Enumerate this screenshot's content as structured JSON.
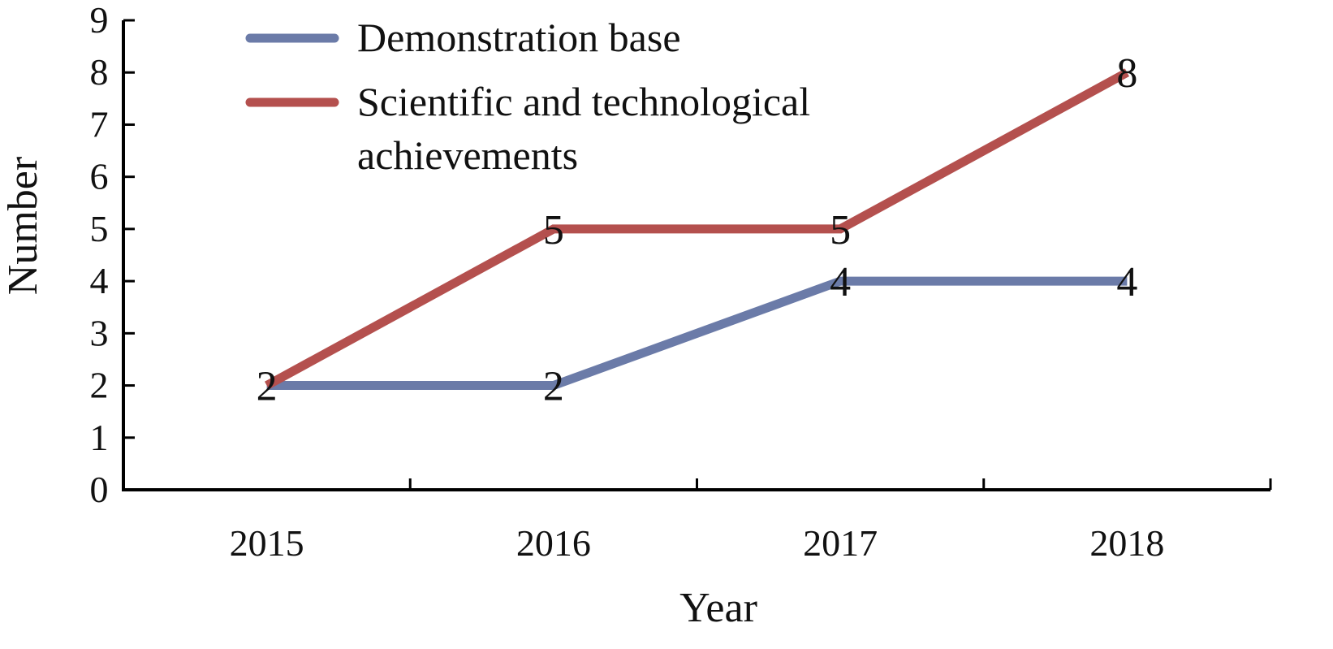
{
  "chart_data": {
    "type": "line",
    "xlabel": "Year",
    "ylabel": "Number",
    "categories": [
      "2015",
      "2016",
      "2017",
      "2018"
    ],
    "ylim": [
      0,
      9
    ],
    "yticks": [
      "0",
      "1",
      "2",
      "3",
      "4",
      "5",
      "6",
      "7",
      "8",
      "9"
    ],
    "grid": false,
    "legend_position": "top-left",
    "series": [
      {
        "name": "Demonstration base",
        "legend_lines": [
          "Demonstration base"
        ],
        "color": "#6B7BA8",
        "values": [
          2,
          2,
          4,
          4
        ],
        "labels": [
          "2",
          "2",
          "4",
          "4"
        ]
      },
      {
        "name": "Scientific and technological achievements",
        "legend_lines": [
          "Scientific and technological",
          "achievements"
        ],
        "color": "#B4504E",
        "values": [
          2,
          5,
          5,
          8
        ],
        "labels": [
          "",
          "5",
          "5",
          "8"
        ]
      }
    ]
  }
}
